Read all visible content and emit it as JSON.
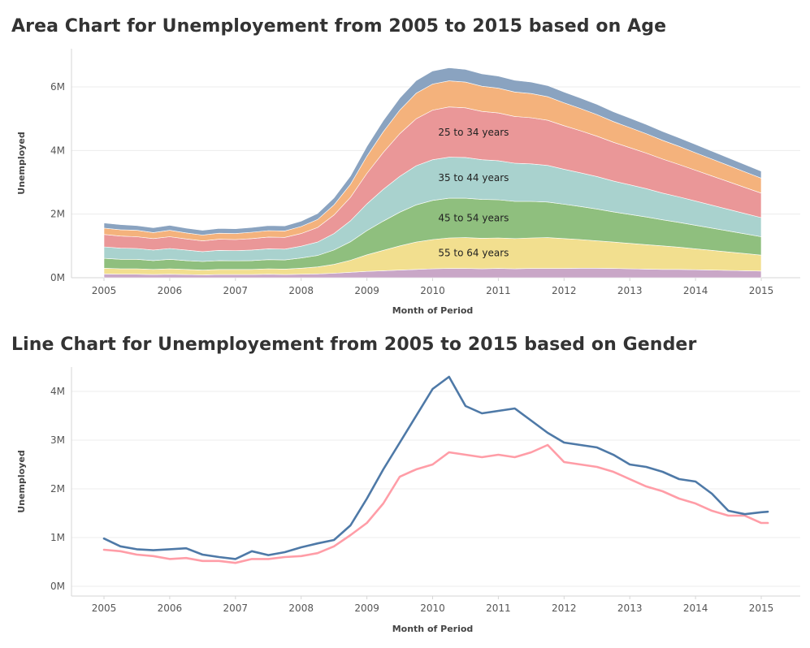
{
  "chart_data": [
    {
      "type": "area",
      "title": "Area Chart for Unemployement from 2005 to 2015 based on Age",
      "xlabel": "Month of Period",
      "ylabel": "Unemployed",
      "ylim": [
        0,
        7200000
      ],
      "ytick_values": [
        0,
        2000000,
        4000000,
        6000000
      ],
      "ytick_labels": [
        "0M",
        "2M",
        "4M",
        "6M"
      ],
      "xticks": [
        "2005",
        "2006",
        "2007",
        "2008",
        "2009",
        "2010",
        "2011",
        "2012",
        "2013",
        "2014",
        "2015"
      ],
      "stacking": "stacked",
      "x": [
        2005.0,
        2005.25,
        2005.5,
        2005.75,
        2006.0,
        2006.25,
        2006.5,
        2006.75,
        2007.0,
        2007.25,
        2007.5,
        2007.75,
        2008.0,
        2008.25,
        2008.5,
        2008.75,
        2009.0,
        2009.25,
        2009.5,
        2009.75,
        2010.0,
        2010.25,
        2010.5,
        2010.75,
        2011.0,
        2011.25,
        2011.5,
        2011.75,
        2012.0,
        2012.25,
        2012.5,
        2012.75,
        2013.0,
        2013.25,
        2013.5,
        2013.75,
        2014.0,
        2014.25,
        2014.5,
        2014.75,
        2015.0
      ],
      "series": [
        {
          "name": "",
          "color": "#c9a7c7",
          "values": [
            120000,
            110000,
            110000,
            100000,
            110000,
            100000,
            90000,
            100000,
            100000,
            100000,
            110000,
            100000,
            110000,
            120000,
            140000,
            170000,
            200000,
            220000,
            240000,
            260000,
            280000,
            290000,
            290000,
            280000,
            290000,
            280000,
            290000,
            290000,
            290000,
            300000,
            300000,
            290000,
            280000,
            270000,
            260000,
            260000,
            250000,
            240000,
            230000,
            220000,
            210000
          ]
        },
        {
          "name": "55 to 64 years",
          "color": "#f2df8f",
          "values": [
            180000,
            170000,
            170000,
            160000,
            170000,
            160000,
            150000,
            160000,
            160000,
            160000,
            170000,
            170000,
            190000,
            220000,
            280000,
            380000,
            520000,
            640000,
            760000,
            860000,
            920000,
            960000,
            970000,
            960000,
            960000,
            950000,
            960000,
            970000,
            940000,
            900000,
            860000,
            830000,
            800000,
            770000,
            740000,
            700000,
            660000,
            620000,
            580000,
            540000,
            500000
          ]
        },
        {
          "name": "45 to 54 years",
          "color": "#8fbf7e",
          "values": [
            310000,
            300000,
            300000,
            280000,
            300000,
            280000,
            270000,
            280000,
            270000,
            280000,
            290000,
            290000,
            320000,
            360000,
            450000,
            580000,
            760000,
            920000,
            1060000,
            1170000,
            1230000,
            1250000,
            1240000,
            1220000,
            1200000,
            1170000,
            1150000,
            1120000,
            1080000,
            1040000,
            1000000,
            950000,
            910000,
            870000,
            820000,
            780000,
            740000,
            700000,
            660000,
            620000,
            580000
          ]
        },
        {
          "name": "35 to 44 years",
          "color": "#a9d2ce",
          "values": [
            360000,
            350000,
            340000,
            330000,
            340000,
            330000,
            310000,
            320000,
            320000,
            330000,
            340000,
            340000,
            370000,
            420000,
            520000,
            660000,
            840000,
            1000000,
            1130000,
            1230000,
            1280000,
            1290000,
            1280000,
            1250000,
            1230000,
            1200000,
            1180000,
            1150000,
            1100000,
            1060000,
            1020000,
            970000,
            930000,
            890000,
            840000,
            800000,
            760000,
            720000,
            680000,
            640000,
            600000
          ]
        },
        {
          "name": "25 to 34 years",
          "color": "#ea9798",
          "values": [
            390000,
            380000,
            370000,
            360000,
            370000,
            350000,
            340000,
            350000,
            350000,
            360000,
            370000,
            370000,
            400000,
            460000,
            580000,
            740000,
            960000,
            1160000,
            1340000,
            1480000,
            1560000,
            1580000,
            1560000,
            1520000,
            1500000,
            1470000,
            1450000,
            1420000,
            1370000,
            1320000,
            1270000,
            1220000,
            1170000,
            1120000,
            1070000,
            1020000,
            970000,
            920000,
            870000,
            820000,
            770000
          ]
        },
        {
          "name": "",
          "color": "#f4b27c",
          "values": [
            200000,
            200000,
            200000,
            190000,
            200000,
            190000,
            180000,
            190000,
            190000,
            200000,
            200000,
            200000,
            220000,
            250000,
            320000,
            410000,
            540000,
            650000,
            740000,
            800000,
            820000,
            820000,
            810000,
            790000,
            780000,
            770000,
            760000,
            740000,
            720000,
            700000,
            680000,
            650000,
            630000,
            610000,
            590000,
            570000,
            550000,
            530000,
            510000,
            490000,
            470000
          ]
        },
        {
          "name": "",
          "color": "#8aa3c0",
          "values": [
            160000,
            160000,
            150000,
            150000,
            160000,
            150000,
            150000,
            150000,
            150000,
            150000,
            160000,
            160000,
            170000,
            190000,
            220000,
            260000,
            310000,
            350000,
            380000,
            400000,
            410000,
            410000,
            400000,
            390000,
            380000,
            370000,
            360000,
            350000,
            340000,
            330000,
            320000,
            310000,
            300000,
            290000,
            280000,
            270000,
            260000,
            250000,
            240000,
            230000,
            220000
          ]
        }
      ],
      "annotations": [
        {
          "text": "25 to 34 years"
        },
        {
          "text": "35 to 44 years"
        },
        {
          "text": "45 to 54 years"
        },
        {
          "text": "55 to 64 years"
        }
      ]
    },
    {
      "type": "line",
      "title": "Line Chart for Unemployement from 2005 to 2015 based on Gender",
      "xlabel": "Month of Period",
      "ylabel": "Unemployed",
      "ylim": [
        -200000,
        4500000
      ],
      "ytick_values": [
        0,
        1000000,
        2000000,
        3000000,
        4000000
      ],
      "ytick_labels": [
        "0M",
        "1M",
        "2M",
        "3M",
        "4M"
      ],
      "xticks": [
        "2005",
        "2006",
        "2007",
        "2008",
        "2009",
        "2010",
        "2011",
        "2012",
        "2013",
        "2014",
        "2015"
      ],
      "x": [
        2005.0,
        2005.25,
        2005.5,
        2005.75,
        2006.0,
        2006.25,
        2006.5,
        2006.75,
        2007.0,
        2007.25,
        2007.5,
        2007.75,
        2008.0,
        2008.25,
        2008.5,
        2008.75,
        2009.0,
        2009.25,
        2009.5,
        2009.75,
        2010.0,
        2010.25,
        2010.5,
        2010.75,
        2011.0,
        2011.25,
        2011.5,
        2011.75,
        2012.0,
        2012.25,
        2012.5,
        2012.75,
        2013.0,
        2013.25,
        2013.5,
        2013.75,
        2014.0,
        2014.25,
        2014.5,
        2014.75,
        2015.0,
        2015.1
      ],
      "series": [
        {
          "name": "",
          "color": "#4e79a7",
          "values": [
            980000,
            820000,
            760000,
            740000,
            760000,
            780000,
            650000,
            600000,
            560000,
            720000,
            640000,
            700000,
            800000,
            880000,
            950000,
            1250000,
            1800000,
            2400000,
            2950000,
            3500000,
            4050000,
            4300000,
            3700000,
            3550000,
            3600000,
            3650000,
            3400000,
            3150000,
            2950000,
            2900000,
            2850000,
            2700000,
            2500000,
            2450000,
            2350000,
            2200000,
            2150000,
            1900000,
            1550000,
            1480000,
            1520000,
            1530000
          ]
        },
        {
          "name": "",
          "color": "#ff9da7",
          "values": [
            750000,
            720000,
            650000,
            620000,
            560000,
            580000,
            520000,
            520000,
            480000,
            560000,
            560000,
            600000,
            620000,
            680000,
            820000,
            1050000,
            1300000,
            1700000,
            2250000,
            2400000,
            2500000,
            2750000,
            2700000,
            2650000,
            2700000,
            2650000,
            2750000,
            2900000,
            2550000,
            2500000,
            2450000,
            2350000,
            2200000,
            2050000,
            1950000,
            1800000,
            1700000,
            1550000,
            1450000,
            1450000,
            1300000,
            1300000
          ]
        }
      ]
    }
  ]
}
